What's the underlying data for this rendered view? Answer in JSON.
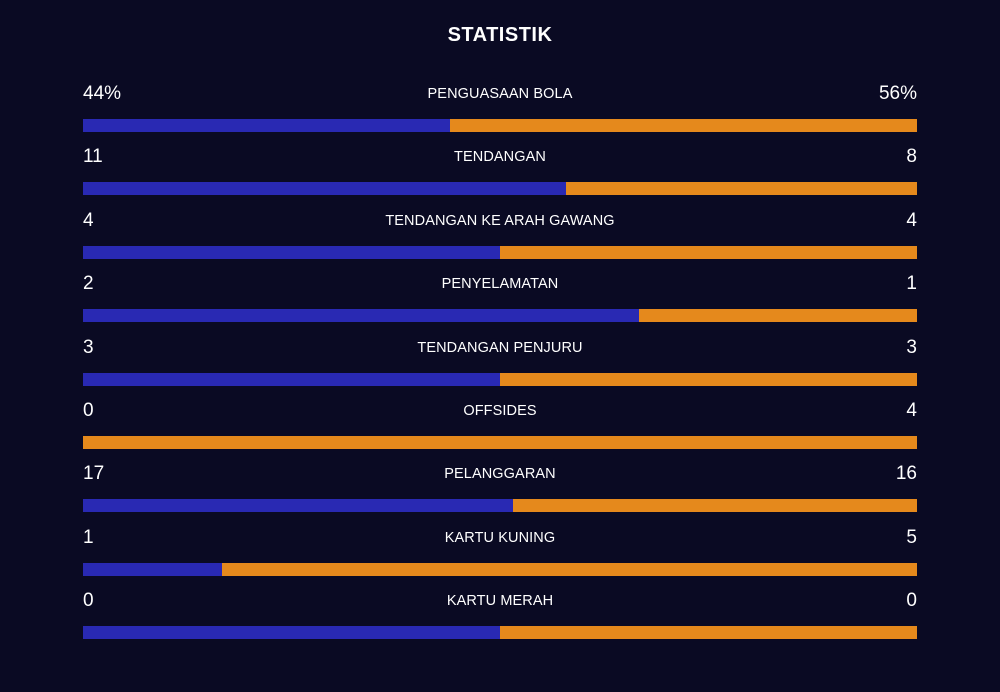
{
  "title": "STATISTIK",
  "colors": {
    "home": "#2929b3",
    "away": "#e5891c",
    "background": "#0a0a23"
  },
  "stats": [
    {
      "label": "PENGUASAAN BOLA",
      "home": "44%",
      "away": "56%",
      "home_share": 0.44
    },
    {
      "label": "TENDANGAN",
      "home": "11",
      "away": "8",
      "home_share": 0.579
    },
    {
      "label": "TENDANGAN KE ARAH GAWANG",
      "home": "4",
      "away": "4",
      "home_share": 0.5
    },
    {
      "label": "PENYELAMATAN",
      "home": "2",
      "away": "1",
      "home_share": 0.667
    },
    {
      "label": "TENDANGAN PENJURU",
      "home": "3",
      "away": "3",
      "home_share": 0.5
    },
    {
      "label": "OFFSIDES",
      "home": "0",
      "away": "4",
      "home_share": 0.0
    },
    {
      "label": "PELANGGARAN",
      "home": "17",
      "away": "16",
      "home_share": 0.515
    },
    {
      "label": "KARTU KUNING",
      "home": "1",
      "away": "5",
      "home_share": 0.167
    },
    {
      "label": "KARTU MERAH",
      "home": "0",
      "away": "0",
      "home_share": 0.5
    }
  ]
}
